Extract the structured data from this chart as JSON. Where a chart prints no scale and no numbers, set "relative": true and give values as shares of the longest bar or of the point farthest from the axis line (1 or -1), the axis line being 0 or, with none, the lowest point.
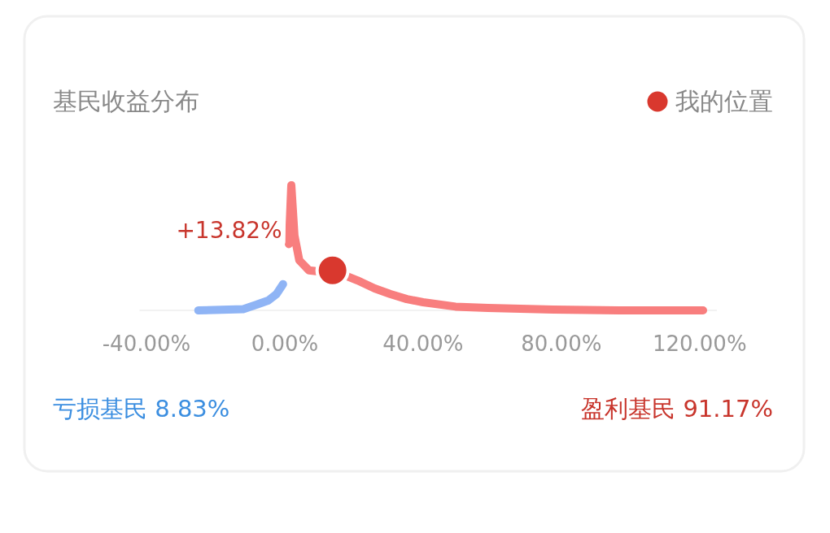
{
  "chart_data": {
    "type": "line",
    "title": "基民收益分布",
    "relative": true,
    "legend": "top right",
    "xlim": [
      -42,
      125
    ],
    "xticks": [
      {
        "value": -40,
        "label": "-40.00%"
      },
      {
        "value": 0,
        "label": "0.00%"
      },
      {
        "value": 40,
        "label": "40.00%"
      },
      {
        "value": 80,
        "label": "80.00%"
      },
      {
        "value": 120,
        "label": "120.00%"
      }
    ],
    "series": [
      {
        "color": "#8fb4f5",
        "x": [
          -25,
          -12,
          -8.2,
          -4.7,
          -2.4,
          -0.5
        ],
        "values": [
          0,
          0.01,
          0.045,
          0.08,
          0.13,
          0.21
        ]
      },
      {
        "color": "#f87e7e",
        "x": [
          1.2,
          1.9,
          2.8,
          4.2,
          7,
          16.5,
          21,
          26,
          30.6,
          35.3,
          40,
          49.4,
          58.8,
          77.6,
          96.5,
          121
        ],
        "values": [
          0.53,
          1,
          0.6,
          0.4,
          0.32,
          0.29,
          0.24,
          0.175,
          0.13,
          0.09,
          0.065,
          0.03,
          0.02,
          0.006,
          0,
          0
        ]
      },
      {
        "name": "我的位置",
        "type": "scatter",
        "color": "#d9382e",
        "x": [
          13.82
        ],
        "values": [
          0.32
        ]
      }
    ],
    "annotations": [
      {
        "text": "+13.82%",
        "x": 13.82,
        "y": 0.32
      },
      "亏损基民 8.83%",
      "盈利基民 91.17%"
    ]
  }
}
